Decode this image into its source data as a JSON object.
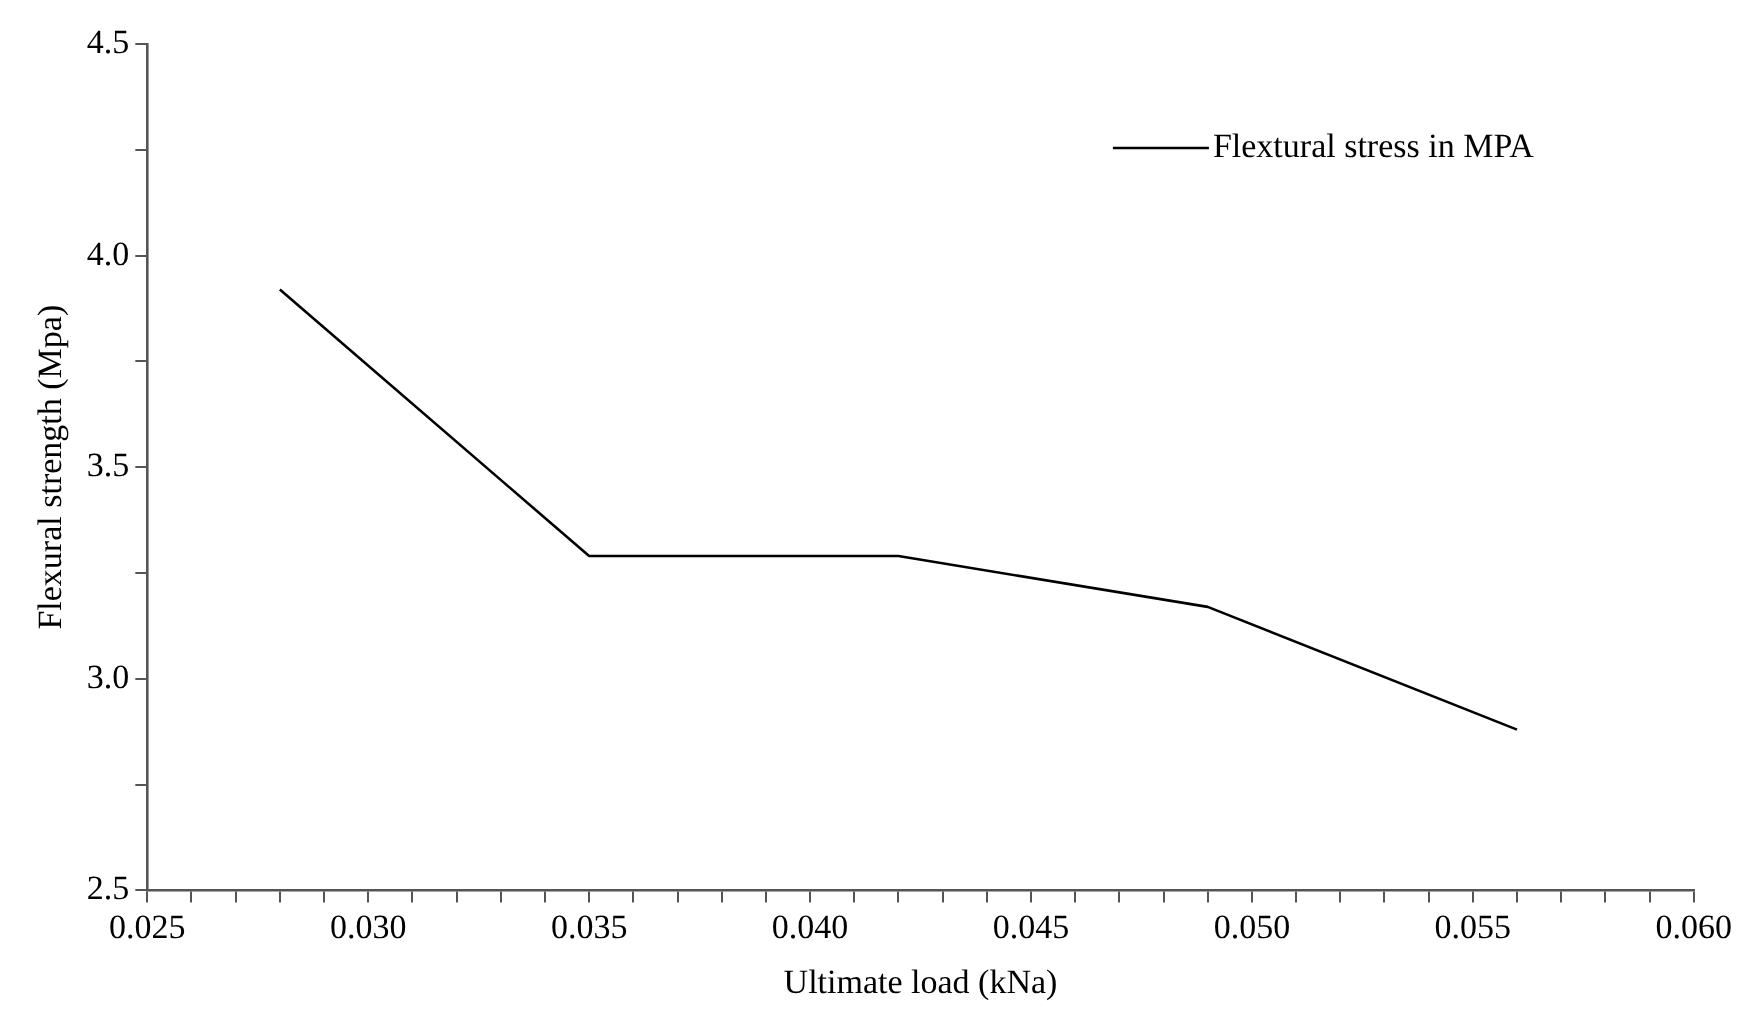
{
  "chart_data": {
    "type": "line",
    "xlabel": "Ultimate load (kNa)",
    "ylabel": "Flexural strength (Mpa)",
    "x": [
      0.028,
      0.035,
      0.042,
      0.049,
      0.056
    ],
    "series": [
      {
        "name": "Flextural stress in MPA",
        "color": "#000000",
        "values": [
          3.92,
          3.29,
          3.29,
          3.17,
          2.88
        ]
      }
    ],
    "xlim": [
      0.025,
      0.06
    ],
    "xticks": [
      0.025,
      {
        "value": 0.026,
        "label": null
      },
      {
        "value": 0.027,
        "label": null
      },
      {
        "value": 0.028,
        "label": null
      },
      {
        "value": 0.029,
        "label": null
      },
      {
        "value": 0.03,
        "label": "0.030"
      },
      {
        "value": 0.031,
        "label": null
      },
      {
        "value": 0.032,
        "label": null
      },
      {
        "value": 0.033,
        "label": null
      },
      {
        "value": 0.034,
        "label": null
      },
      0.035,
      {
        "value": 0.036,
        "label": null
      },
      {
        "value": 0.037,
        "label": null
      },
      {
        "value": 0.038,
        "label": null
      },
      {
        "value": 0.039,
        "label": null
      },
      {
        "value": 0.04,
        "label": "0.040"
      },
      {
        "value": 0.041,
        "label": null
      },
      {
        "value": 0.042,
        "label": null
      },
      {
        "value": 0.043,
        "label": null
      },
      {
        "value": 0.044,
        "label": null
      },
      0.045,
      {
        "value": 0.046,
        "label": null
      },
      {
        "value": 0.047,
        "label": null
      },
      {
        "value": 0.048,
        "label": null
      },
      {
        "value": 0.049,
        "label": null
      },
      {
        "value": 0.05,
        "label": "0.050"
      },
      {
        "value": 0.051,
        "label": null
      },
      {
        "value": 0.052,
        "label": null
      },
      {
        "value": 0.053,
        "label": null
      },
      {
        "value": 0.054,
        "label": null
      },
      0.055,
      {
        "value": 0.056,
        "label": null
      },
      {
        "value": 0.057,
        "label": null
      },
      {
        "value": 0.058,
        "label": null
      },
      {
        "value": 0.059,
        "label": null
      },
      {
        "value": 0.06,
        "label": "0.060"
      }
    ],
    "ylim": [
      2.5,
      4.5
    ],
    "yticks": [
      2.5,
      {
        "value": 2.75,
        "label": null
      },
      {
        "value": 3,
        "label": "3.0"
      },
      {
        "value": 3.25,
        "label": null
      },
      3.5,
      {
        "value": 3.75,
        "label": null
      },
      {
        "value": 4,
        "label": "4.0"
      },
      {
        "value": 4.25,
        "label": null
      },
      4.5
    ],
    "grid": false,
    "legend": "top right",
    "marker": "none",
    "line_style": "solid"
  }
}
